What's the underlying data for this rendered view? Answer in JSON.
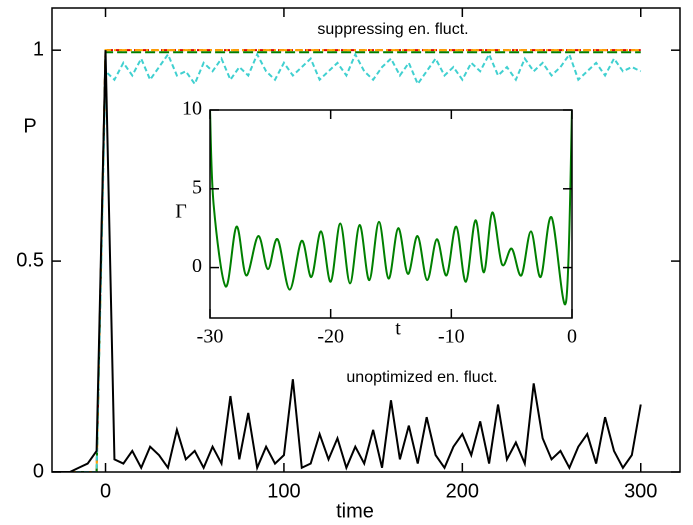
{
  "chart_data": [
    {
      "type": "line",
      "xlabel": "time",
      "ylabel": "P",
      "annotations": [
        "suppressing en. fluct.",
        "unoptimized en. fluct."
      ],
      "xlim": [
        -30,
        322
      ],
      "ylim": [
        0,
        1.1
      ],
      "xticks": [
        0,
        100,
        200,
        300
      ],
      "yticks": [
        0,
        0.5,
        1
      ],
      "x": [
        -30,
        -25,
        -20,
        -15,
        -10,
        -5,
        0,
        5,
        10,
        15,
        20,
        25,
        30,
        35,
        40,
        45,
        50,
        55,
        60,
        65,
        70,
        75,
        80,
        85,
        90,
        95,
        100,
        105,
        110,
        115,
        120,
        125,
        130,
        135,
        140,
        145,
        150,
        155,
        160,
        165,
        170,
        175,
        180,
        185,
        190,
        195,
        200,
        205,
        210,
        215,
        220,
        225,
        230,
        235,
        240,
        245,
        250,
        255,
        260,
        265,
        270,
        275,
        280,
        285,
        290,
        295,
        300
      ],
      "series": [
        {
          "name": "red",
          "color": "#e00000",
          "dash": "6 3",
          "values": [
            0,
            0,
            0,
            0,
            0,
            0,
            1,
            1,
            1,
            1,
            1,
            1,
            1,
            1,
            1,
            1,
            1,
            1,
            1,
            1,
            1,
            1,
            1,
            1,
            1,
            1,
            1,
            1,
            1,
            1,
            1,
            1,
            1,
            1,
            1,
            1,
            1,
            1,
            1,
            1,
            1,
            1,
            1,
            1,
            1,
            1,
            1,
            1,
            1,
            1,
            1,
            1,
            1,
            1,
            1,
            1,
            1,
            1,
            1,
            1,
            1,
            1,
            1,
            1,
            1,
            1,
            1
          ]
        },
        {
          "name": "green",
          "color": "#008000",
          "dash": "10 4",
          "values": [
            0,
            0,
            0,
            0,
            0,
            0,
            0.995,
            0.995,
            0.995,
            0.995,
            0.995,
            0.995,
            0.995,
            0.995,
            0.995,
            0.995,
            0.995,
            0.995,
            0.995,
            0.995,
            0.995,
            0.995,
            0.995,
            0.995,
            0.995,
            0.995,
            0.995,
            0.995,
            0.995,
            0.995,
            0.995,
            0.995,
            0.995,
            0.995,
            0.995,
            0.995,
            0.995,
            0.995,
            0.995,
            0.995,
            0.995,
            0.995,
            0.995,
            0.995,
            0.995,
            0.995,
            0.995,
            0.995,
            0.995,
            0.995,
            0.995,
            0.995,
            0.995,
            0.995,
            0.995,
            0.995,
            0.995,
            0.995,
            0.995,
            0.995,
            0.995,
            0.995,
            0.995,
            0.995,
            0.995,
            0.995,
            0.995
          ]
        },
        {
          "name": "orange",
          "color": "#ffa500",
          "dash": "8 3 2 3",
          "values": [
            0,
            0,
            0,
            0,
            0,
            0,
            1,
            1,
            1,
            1,
            1,
            1,
            1,
            1,
            1,
            1,
            1,
            1,
            1,
            1,
            1,
            1,
            1,
            1,
            1,
            1,
            1,
            1,
            1,
            1,
            1,
            1,
            1,
            1,
            1,
            1,
            1,
            1,
            1,
            1,
            1,
            1,
            1,
            1,
            1,
            1,
            1,
            1,
            1,
            1,
            1,
            1,
            1,
            1,
            1,
            1,
            1,
            1,
            1,
            1,
            1,
            1,
            1,
            1,
            1,
            1,
            1
          ]
        },
        {
          "name": "cyan",
          "color": "#40d0d0",
          "dash": "5 3",
          "values": [
            0,
            0,
            0,
            0,
            0,
            0,
            0.95,
            0.93,
            0.97,
            0.94,
            0.98,
            0.93,
            0.96,
            0.99,
            0.94,
            0.95,
            0.92,
            0.97,
            0.95,
            0.98,
            0.93,
            0.96,
            0.94,
            0.99,
            0.95,
            0.93,
            0.97,
            0.94,
            0.96,
            0.98,
            0.93,
            0.95,
            0.97,
            0.94,
            0.99,
            0.95,
            0.93,
            0.96,
            0.98,
            0.94,
            0.97,
            0.92,
            0.95,
            0.98,
            0.94,
            0.96,
            0.93,
            0.97,
            0.95,
            0.99,
            0.94,
            0.96,
            0.93,
            0.98,
            0.95,
            0.97,
            0.94,
            0.96,
            0.99,
            0.93,
            0.95,
            0.97,
            0.94,
            0.98,
            0.95,
            0.96,
            0.95
          ]
        },
        {
          "name": "black",
          "color": "#000000",
          "dash": "",
          "values": [
            0,
            0,
            0,
            0.01,
            0.02,
            0.05,
            1,
            0.03,
            0.02,
            0.05,
            0.01,
            0.06,
            0.04,
            0.01,
            0.1,
            0.03,
            0.05,
            0.01,
            0.06,
            0.02,
            0.18,
            0.03,
            0.14,
            0.01,
            0.06,
            0.02,
            0.04,
            0.22,
            0.01,
            0.02,
            0.09,
            0.03,
            0.08,
            0.01,
            0.06,
            0.02,
            0.1,
            0.01,
            0.17,
            0.03,
            0.11,
            0.02,
            0.13,
            0.04,
            0.01,
            0.06,
            0.09,
            0.04,
            0.12,
            0.02,
            0.16,
            0.03,
            0.07,
            0.02,
            0.21,
            0.08,
            0.03,
            0.05,
            0.01,
            0.06,
            0.09,
            0.02,
            0.13,
            0.05,
            0.01,
            0.04,
            0.16
          ]
        }
      ]
    },
    {
      "type": "line",
      "xlabel": "t",
      "ylabel": "Γ",
      "xlim": [
        -30,
        0
      ],
      "ylim": [
        -3.2,
        10
      ],
      "xticks": [
        -30,
        -20,
        -10,
        0
      ],
      "yticks": [
        0,
        5,
        10
      ],
      "x": [
        -30,
        -29.7,
        -28.7,
        -27.8,
        -27,
        -26,
        -25.2,
        -24.4,
        -23.4,
        -22.4,
        -21.6,
        -20.8,
        -20,
        -19.2,
        -18.4,
        -17.6,
        -16.8,
        -16,
        -15.2,
        -14.4,
        -13.6,
        -12.8,
        -12,
        -11.2,
        -10.4,
        -9.6,
        -8.8,
        -8,
        -7.3,
        -6.6,
        -5.8,
        -5,
        -4.2,
        -3.4,
        -2.6,
        -1.7,
        -0.5,
        0
      ],
      "series": [
        {
          "name": "Γ",
          "color": "#008000",
          "dash": "",
          "values": [
            10,
            4.0,
            -1.2,
            2.6,
            -0.5,
            2.0,
            -0.1,
            1.8,
            -1.4,
            1.7,
            -0.6,
            2.3,
            -0.9,
            2.8,
            -1.0,
            2.7,
            -0.8,
            2.9,
            -0.7,
            2.5,
            -0.4,
            2.0,
            -0.8,
            1.8,
            -0.5,
            2.6,
            -0.9,
            3.0,
            -0.3,
            3.5,
            0.2,
            1.2,
            -0.5,
            2.3,
            -0.6,
            3.2,
            -2.2,
            10
          ]
        }
      ]
    }
  ]
}
